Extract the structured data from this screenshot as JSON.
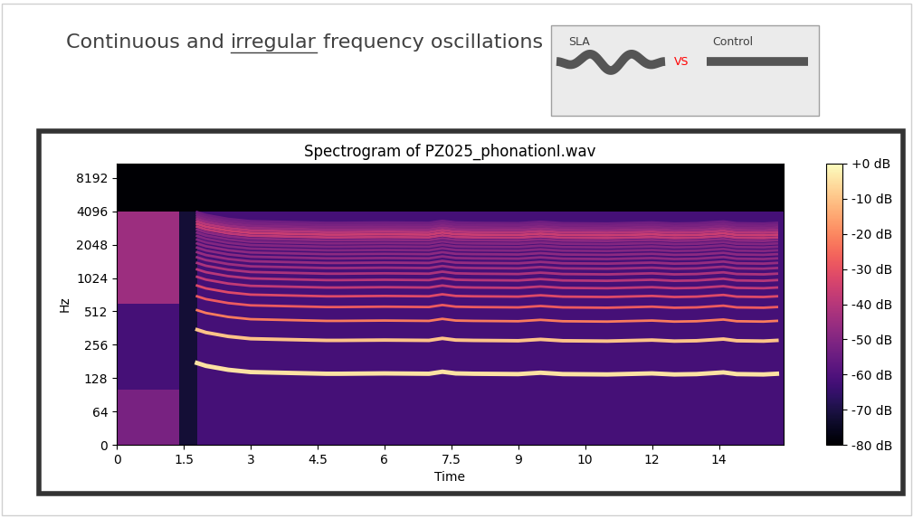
{
  "heading": {
    "text": "Continuous and irregular frequency oscillations",
    "underlined": "irregular"
  },
  "legend_box": {
    "left_label": "SLA",
    "vs": "VS",
    "right_label": "Control",
    "vs_color": "red"
  },
  "chart_data": {
    "type": "spectrogram",
    "title": "Spectrogram of PZ025_phonationI.wav",
    "x_label": "Time",
    "y_label": "Hz",
    "log": "y",
    "xlim": [
      0,
      14.95
    ],
    "ylim": [
      0,
      11025
    ],
    "xticks": [
      0,
      1.5,
      3,
      4.5,
      6,
      7.5,
      9,
      {
        "value": 10.5,
        "label": "10"
      },
      12,
      {
        "value": 13.5,
        "label": "14"
      }
    ],
    "yticks": [
      0,
      64,
      128,
      256,
      512,
      1024,
      2048,
      4096,
      8192
    ],
    "colorbar": {
      "range": [
        -80,
        0
      ],
      "ticks": [
        {
          "value": 0,
          "label": "+0 dB"
        },
        {
          "value": -10,
          "label": "-10 dB"
        },
        {
          "value": -20,
          "label": "-20 dB"
        },
        {
          "value": -30,
          "label": "-30 dB"
        },
        {
          "value": -40,
          "label": "-40 dB"
        },
        {
          "value": -50,
          "label": "-50 dB"
        },
        {
          "value": -60,
          "label": "-60 dB"
        },
        {
          "value": -70,
          "label": "-70 dB"
        },
        {
          "value": -80,
          "label": "-80 dB"
        }
      ]
    },
    "regions": [
      {
        "t": [
          0,
          14.95
        ],
        "f": [
          4096,
          11025
        ],
        "db": -80
      },
      {
        "t": [
          0,
          14.95
        ],
        "f": [
          0,
          4096
        ],
        "db": -62
      },
      {
        "t": [
          0,
          1.4
        ],
        "f": [
          600,
          4096
        ],
        "db": -45
      },
      {
        "t": [
          0,
          1.4
        ],
        "f": [
          0,
          100
        ],
        "db": -52
      },
      {
        "t": [
          1.4,
          1.8
        ],
        "f": [
          0,
          4096
        ],
        "db": -72
      }
    ],
    "f0": {
      "x": [
        1.8,
        2.0,
        2.5,
        3.0,
        4.0,
        4.7,
        5.0,
        6.0,
        7.0,
        7.3,
        7.6,
        8.0,
        9.0,
        9.5,
        10.0,
        11.0,
        12.0,
        12.5,
        13.0,
        13.6,
        13.9,
        14.5,
        14.8
      ],
      "values": [
        175,
        165,
        152,
        145,
        142,
        140,
        140,
        141,
        140,
        146,
        141,
        140,
        139,
        143,
        139,
        138,
        141,
        138,
        139,
        144,
        139,
        138,
        140
      ]
    },
    "harmonic_db": [
      -5,
      -10,
      -22,
      -28,
      -32,
      -38,
      -40,
      -42,
      -45,
      -46,
      -48,
      -48,
      -50,
      -50,
      -50,
      -48,
      -38,
      -36,
      -40,
      -46,
      -50,
      -52,
      -54
    ]
  }
}
